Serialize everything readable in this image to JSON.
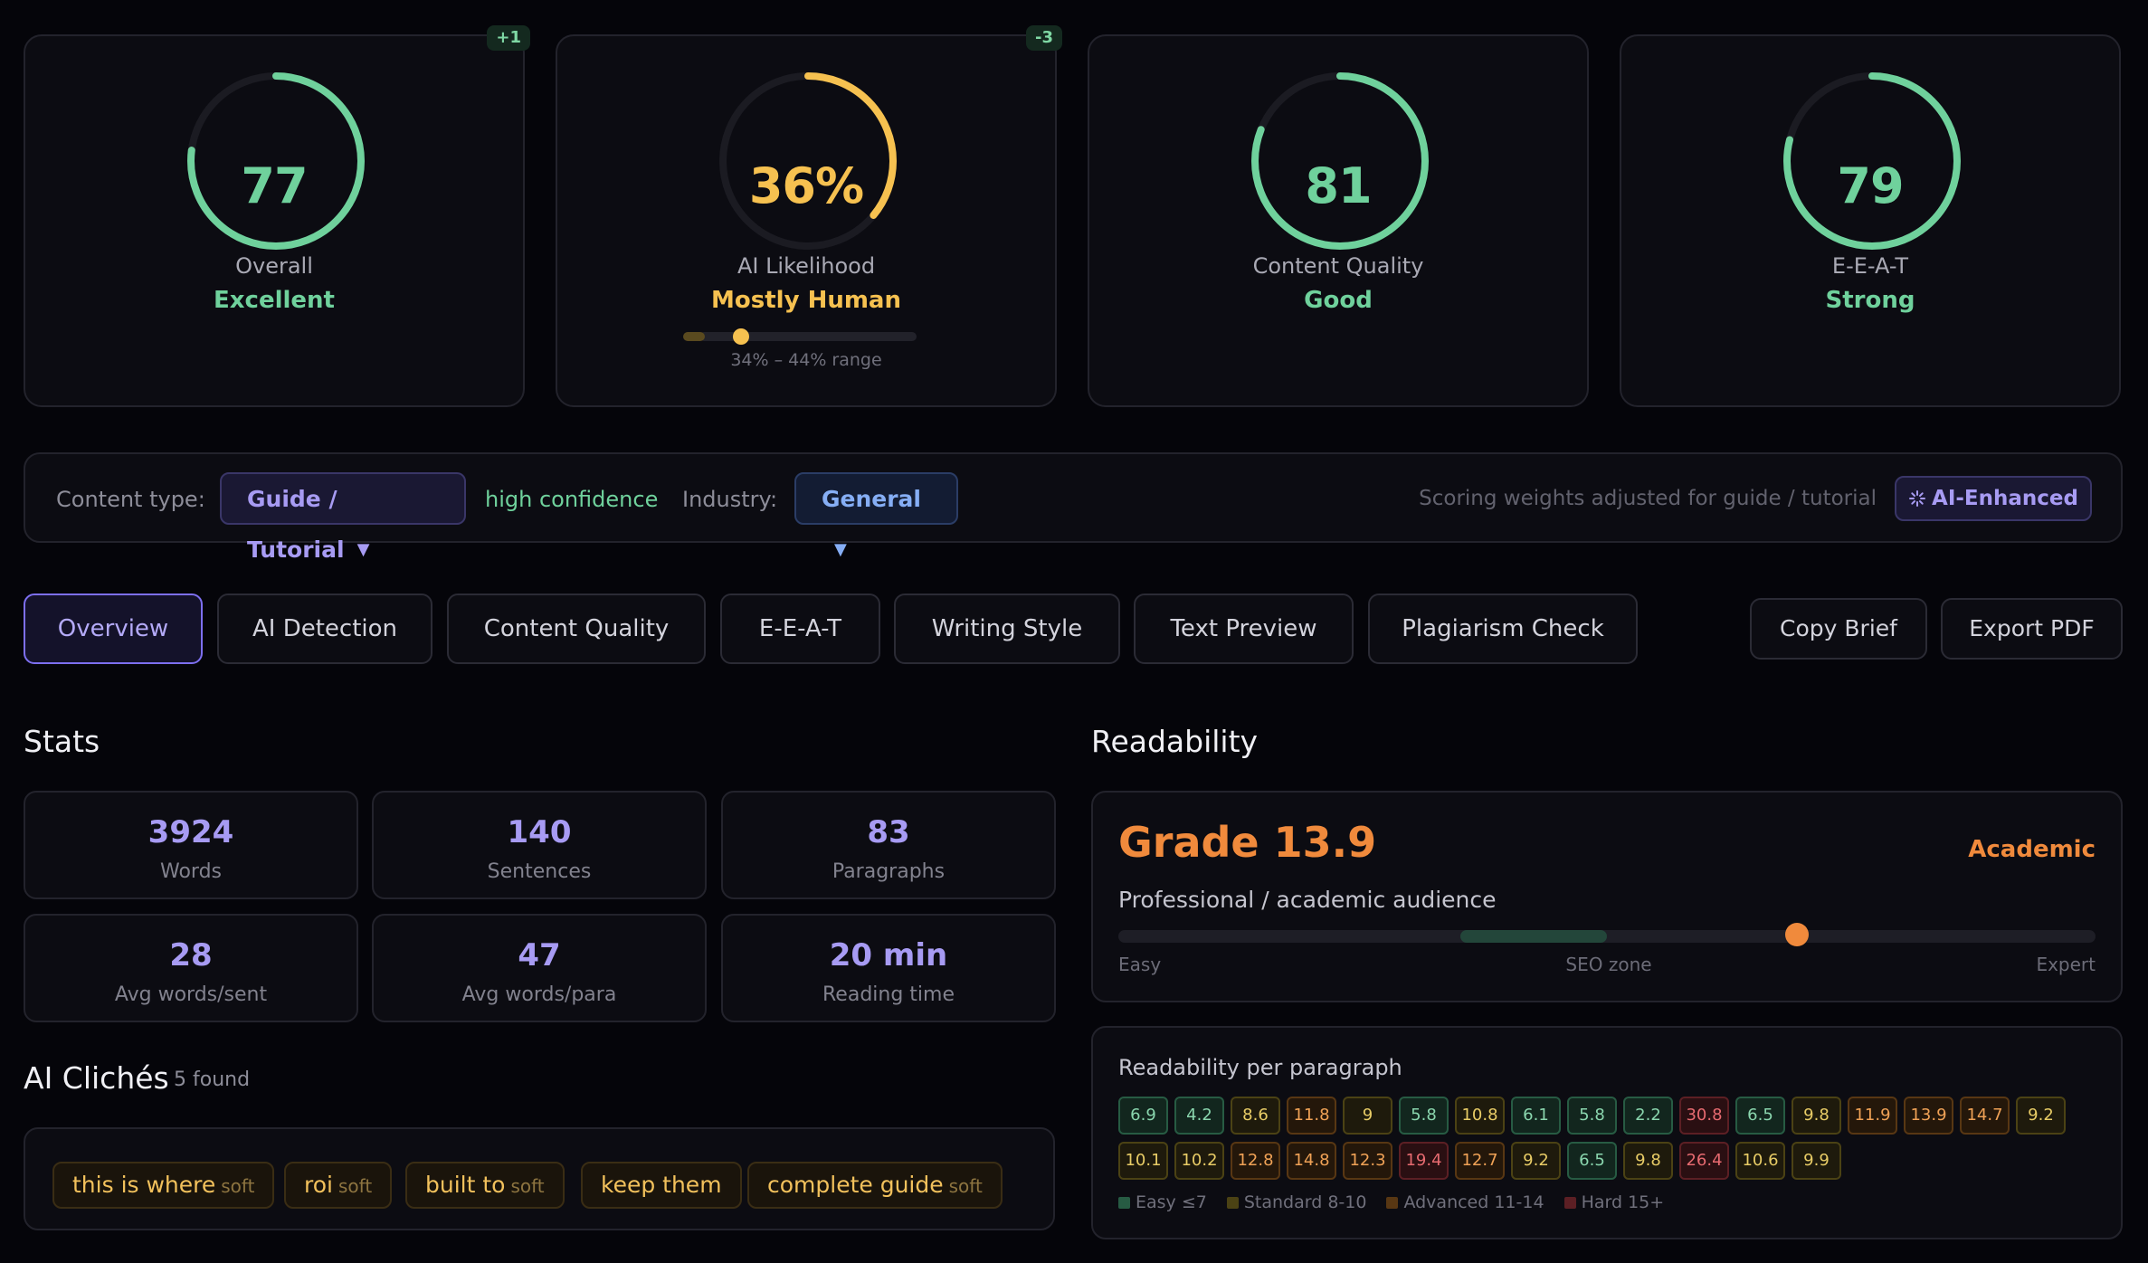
{
  "colors": {
    "green": "#6fd19c",
    "amber": "#f6c150",
    "orange": "#f08a3c",
    "purple": "#a79bf3",
    "blue": "#86aef5"
  },
  "scores": [
    {
      "value": "77",
      "fraction": 0.77,
      "label": "Overall",
      "status": "Excellent",
      "color": "#6fd19c",
      "delta": "+1"
    },
    {
      "value": "36%",
      "fraction": 0.36,
      "label": "AI Likelihood",
      "status": "Mostly Human",
      "color": "#f6c150",
      "delta": "-3",
      "range_low": 0.34,
      "range_high": 0.44,
      "range_text": "34% – 44% range"
    },
    {
      "value": "81",
      "fraction": 0.81,
      "label": "Content Quality",
      "status": "Good",
      "color": "#6fd19c"
    },
    {
      "value": "79",
      "fraction": 0.79,
      "label": "E-E-A-T",
      "status": "Strong",
      "color": "#6fd19c"
    }
  ],
  "content_type": {
    "label": "Content type:",
    "value": "Guide / Tutorial",
    "confidence": "high confidence",
    "industry_label": "Industry:",
    "industry_value": "General",
    "weights_note": "Scoring weights adjusted for guide / tutorial",
    "badge": "AI-Enhanced",
    "badge_icon": "sparkle-icon"
  },
  "tabs": [
    "Overview",
    "AI Detection",
    "Content Quality",
    "E-E-A-T",
    "Writing Style",
    "Text Preview",
    "Plagiarism Check"
  ],
  "active_tab": "Overview",
  "actions": {
    "copy": "Copy Brief",
    "export": "Export PDF"
  },
  "stats": {
    "title": "Stats",
    "items": [
      {
        "value": "3924",
        "label": "Words"
      },
      {
        "value": "140",
        "label": "Sentences"
      },
      {
        "value": "83",
        "label": "Paragraphs"
      },
      {
        "value": "28",
        "label": "Avg words/sent"
      },
      {
        "value": "47",
        "label": "Avg words/para"
      },
      {
        "value": "20 min",
        "label": "Reading time"
      }
    ]
  },
  "cliches": {
    "title": "AI Clichés",
    "count": "5 found",
    "items": [
      {
        "text": "this is where",
        "tag": "soft"
      },
      {
        "text": "roi",
        "tag": "soft"
      },
      {
        "text": "built to",
        "tag": "soft"
      },
      {
        "text": "keep them",
        "tag": ""
      },
      {
        "text": "complete guide",
        "tag": "soft"
      }
    ]
  },
  "readability": {
    "title": "Readability",
    "grade": "Grade 13.9",
    "level": "Academic",
    "audience": "Professional / academic audience",
    "position": 0.694,
    "seo_zone": [
      0.35,
      0.5
    ],
    "scale": {
      "easy": "Easy",
      "seo": "SEO zone",
      "expert": "Expert"
    },
    "per_paragraph_title": "Readability per paragraph",
    "paragraphs": [
      "6.9",
      "4.2",
      "8.6",
      "11.8",
      "9",
      "5.8",
      "10.8",
      "6.1",
      "5.8",
      "2.2",
      "30.8",
      "6.5",
      "9.8",
      "11.9",
      "13.9",
      "14.7",
      "9.2",
      "10.1",
      "10.2",
      "12.8",
      "14.8",
      "12.3",
      "19.4",
      "12.7",
      "9.2",
      "6.5",
      "9.8",
      "26.4",
      "10.6",
      "9.9"
    ],
    "legend": [
      "Easy ≤7",
      "Standard 8-10",
      "Advanced 11-14",
      "Hard 15+"
    ]
  }
}
